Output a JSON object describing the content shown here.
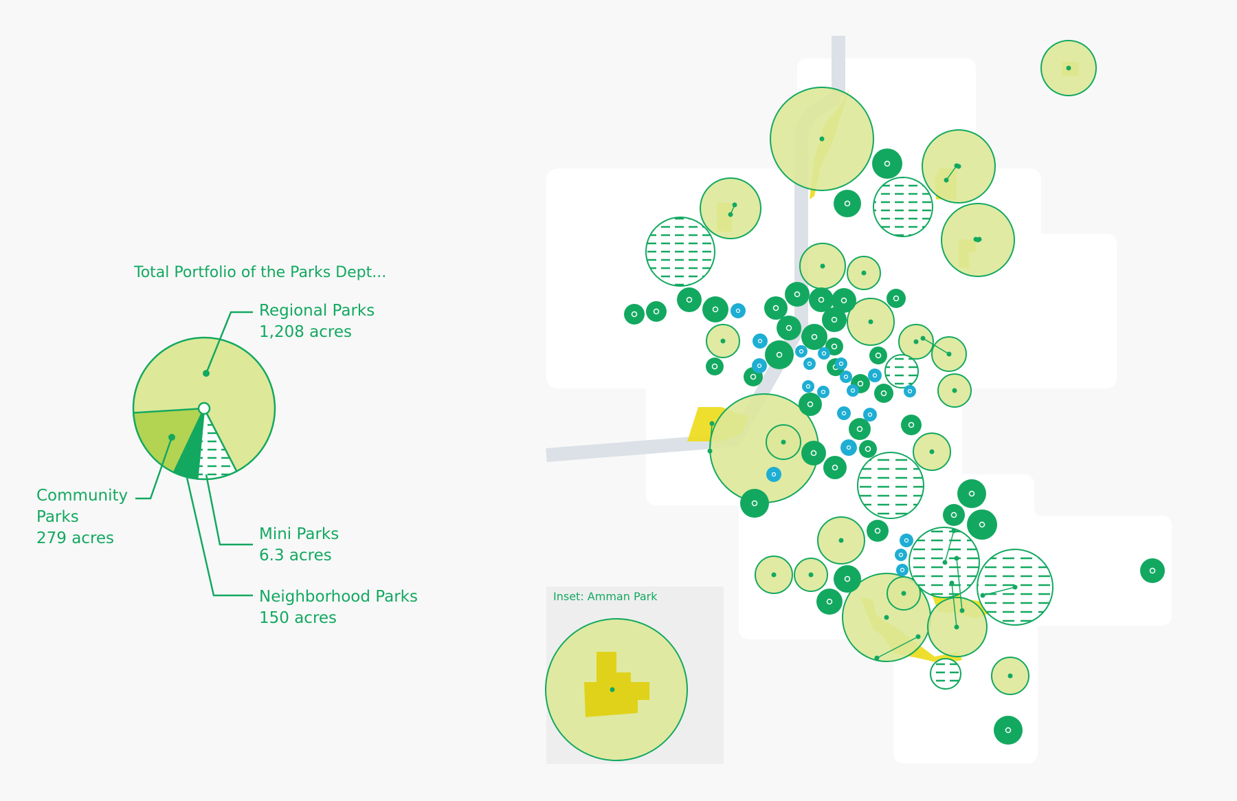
{
  "chart_title": "Total Portfolio of the Parks Dept...",
  "legend": {
    "regional": {
      "name": "Regional Parks",
      "value": "1,208 acres"
    },
    "community": {
      "name1": "Community",
      "name2": "Parks",
      "value": "279 acres"
    },
    "mini": {
      "name": "Mini Parks",
      "value": "6.3 acres"
    },
    "neighborhood": {
      "name": "Neighborhood Parks",
      "value": "150 acres"
    }
  },
  "inset": {
    "title": "Inset: Amman Park"
  },
  "chart_data": {
    "type": "pie",
    "categories": [
      "Regional Parks",
      "Community Parks",
      "Mini Parks",
      "Neighborhood Parks"
    ],
    "values": [
      1208,
      279,
      6.3,
      150
    ],
    "unit": "acres"
  },
  "colors": {
    "green": "#13a860",
    "regional_fill": "#dde899",
    "community_fill": "#b2d452",
    "park_yellow": "#ecdc18",
    "mini_blue": "#1eaed3",
    "road": "#dbe1e6"
  }
}
